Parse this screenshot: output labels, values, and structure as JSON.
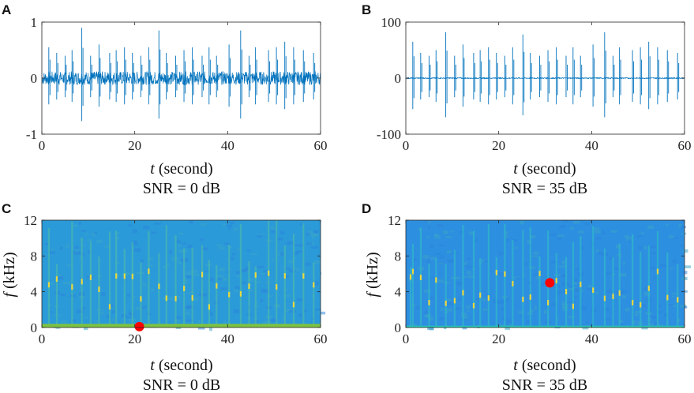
{
  "chart_data": [
    {
      "panel": "A",
      "type": "line",
      "description_series": "noisy waveform with transient spikes",
      "x": {
        "range": [
          0,
          60
        ],
        "ticks": [
          "0",
          "20",
          "40",
          "60"
        ],
        "label_var": "t",
        "label_unit": "(second)"
      },
      "y": {
        "range": [
          -1,
          1
        ],
        "ticks": [
          "-1",
          "0",
          "1"
        ]
      },
      "noise_amplitude": 0.12,
      "spikes": [
        {
          "t": 1.5,
          "amp": 0.55
        },
        {
          "t": 3.2,
          "amp": 0.45
        },
        {
          "t": 5.0,
          "amp": 0.4
        },
        {
          "t": 6.5,
          "amp": 0.5
        },
        {
          "t": 8.6,
          "amp": 0.9
        },
        {
          "t": 10.5,
          "amp": 0.4
        },
        {
          "t": 12.3,
          "amp": 0.6
        },
        {
          "t": 14.6,
          "amp": 0.45
        },
        {
          "t": 16.0,
          "amp": 0.5
        },
        {
          "t": 17.8,
          "amp": 0.55
        },
        {
          "t": 19.5,
          "amp": 0.45
        },
        {
          "t": 21.3,
          "amp": 0.4
        },
        {
          "t": 23.0,
          "amp": 0.55
        },
        {
          "t": 25.2,
          "amp": 0.85
        },
        {
          "t": 26.8,
          "amp": 0.45
        },
        {
          "t": 28.8,
          "amp": 0.4
        },
        {
          "t": 30.6,
          "amp": 0.5
        },
        {
          "t": 32.4,
          "amp": 0.55
        },
        {
          "t": 34.5,
          "amp": 0.4
        },
        {
          "t": 36.0,
          "amp": 0.55
        },
        {
          "t": 37.6,
          "amp": 0.4
        },
        {
          "t": 40.3,
          "amp": 0.6
        },
        {
          "t": 42.8,
          "amp": 0.85
        },
        {
          "t": 44.6,
          "amp": 0.4
        },
        {
          "t": 46.0,
          "amp": 0.55
        },
        {
          "t": 48.8,
          "amp": 0.5
        },
        {
          "t": 50.5,
          "amp": 0.55
        },
        {
          "t": 52.3,
          "amp": 0.65
        },
        {
          "t": 54.2,
          "amp": 0.55
        },
        {
          "t": 56.3,
          "amp": 0.5
        },
        {
          "t": 58.5,
          "amp": 0.45
        }
      ],
      "caption": "SNR = 0 dB"
    },
    {
      "panel": "B",
      "type": "line",
      "description_series": "clean waveform with transient spikes",
      "x": {
        "range": [
          0,
          60
        ],
        "ticks": [
          "0",
          "20",
          "40",
          "60"
        ],
        "label_var": "t",
        "label_unit": "(second)"
      },
      "y": {
        "range": [
          -100,
          100
        ],
        "ticks": [
          "-100",
          "0",
          "100"
        ]
      },
      "noise_amplitude": 1,
      "spikes": [
        {
          "t": 1.5,
          "amp": 65
        },
        {
          "t": 3.2,
          "amp": 45
        },
        {
          "t": 5.0,
          "amp": 40
        },
        {
          "t": 6.5,
          "amp": 50
        },
        {
          "t": 8.6,
          "amp": 82
        },
        {
          "t": 10.5,
          "amp": 40
        },
        {
          "t": 12.3,
          "amp": 60
        },
        {
          "t": 14.6,
          "amp": 45
        },
        {
          "t": 16.0,
          "amp": 50
        },
        {
          "t": 17.8,
          "amp": 55
        },
        {
          "t": 19.5,
          "amp": 45
        },
        {
          "t": 21.3,
          "amp": 40
        },
        {
          "t": 23.0,
          "amp": 55
        },
        {
          "t": 25.2,
          "amp": 78
        },
        {
          "t": 26.8,
          "amp": 45
        },
        {
          "t": 28.8,
          "amp": 40
        },
        {
          "t": 30.6,
          "amp": 50
        },
        {
          "t": 32.4,
          "amp": 55
        },
        {
          "t": 34.5,
          "amp": 40
        },
        {
          "t": 36.0,
          "amp": 55
        },
        {
          "t": 37.6,
          "amp": 40
        },
        {
          "t": 40.3,
          "amp": 60
        },
        {
          "t": 42.8,
          "amp": 82
        },
        {
          "t": 44.6,
          "amp": 40
        },
        {
          "t": 46.0,
          "amp": 55
        },
        {
          "t": 48.8,
          "amp": 50
        },
        {
          "t": 50.5,
          "amp": 55
        },
        {
          "t": 52.3,
          "amp": 65
        },
        {
          "t": 54.2,
          "amp": 55
        },
        {
          "t": 56.3,
          "amp": 50
        },
        {
          "t": 58.5,
          "amp": 45
        }
      ],
      "caption": "SNR = 35 dB"
    },
    {
      "panel": "C",
      "type": "heatmap",
      "x": {
        "range": [
          0,
          60
        ],
        "ticks": [
          "0",
          "20",
          "40",
          "60"
        ],
        "label_var": "t",
        "label_unit": "(second)"
      },
      "y": {
        "range": [
          0,
          12
        ],
        "ticks": [
          "0",
          "4",
          "8",
          "12"
        ],
        "label_var": "f",
        "label_unit": "(kHz)"
      },
      "background_color": "#2b9ad8",
      "low_band_color": "#7ec33f",
      "low_band_top_khz": 0.4,
      "stripe_color": "#48b6b0",
      "highlight_color": "#e8d940",
      "stripes_t": [
        1.5,
        3.2,
        6.5,
        8.6,
        10.5,
        12.3,
        14.6,
        16.0,
        17.8,
        19.5,
        21.3,
        23.0,
        25.2,
        26.8,
        28.8,
        30.6,
        32.4,
        34.5,
        36.0,
        37.6,
        40.3,
        42.8,
        44.6,
        46.0,
        48.8,
        50.5,
        52.3,
        54.2,
        56.3,
        58.5
      ],
      "marker": {
        "t": 21,
        "f_khz": 0.1,
        "color": "#ff0000"
      },
      "caption": "SNR = 0 dB"
    },
    {
      "panel": "D",
      "type": "heatmap",
      "x": {
        "range": [
          0,
          60
        ],
        "ticks": [
          "0",
          "20",
          "40",
          "60"
        ],
        "label_var": "t",
        "label_unit": "(second)"
      },
      "y": {
        "range": [
          0,
          12
        ],
        "ticks": [
          "0",
          "4",
          "8",
          "12"
        ],
        "label_var": "f",
        "label_unit": "(kHz)"
      },
      "background_color": "#2d8fe0",
      "low_band_color": "#27c7b8",
      "low_band_top_khz": 0.2,
      "stripe_color": "#30b6c9",
      "highlight_color": "#e8d940",
      "stripes_t": [
        1.0,
        1.5,
        3.2,
        5.0,
        6.5,
        8.6,
        10.5,
        12.3,
        14.6,
        16.0,
        17.8,
        19.5,
        21.3,
        23.0,
        25.2,
        26.8,
        28.8,
        30.6,
        32.4,
        34.5,
        36.0,
        37.6,
        40.3,
        42.8,
        44.6,
        46.0,
        48.8,
        50.5,
        52.3,
        54.2,
        56.3,
        58.5
      ],
      "marker": {
        "t": 31,
        "f_khz": 5.0,
        "color": "#ff0000"
      },
      "caption": "SNR = 35 dB"
    }
  ],
  "colors": {
    "waveform": "#0072bd",
    "axis": "#262626"
  }
}
